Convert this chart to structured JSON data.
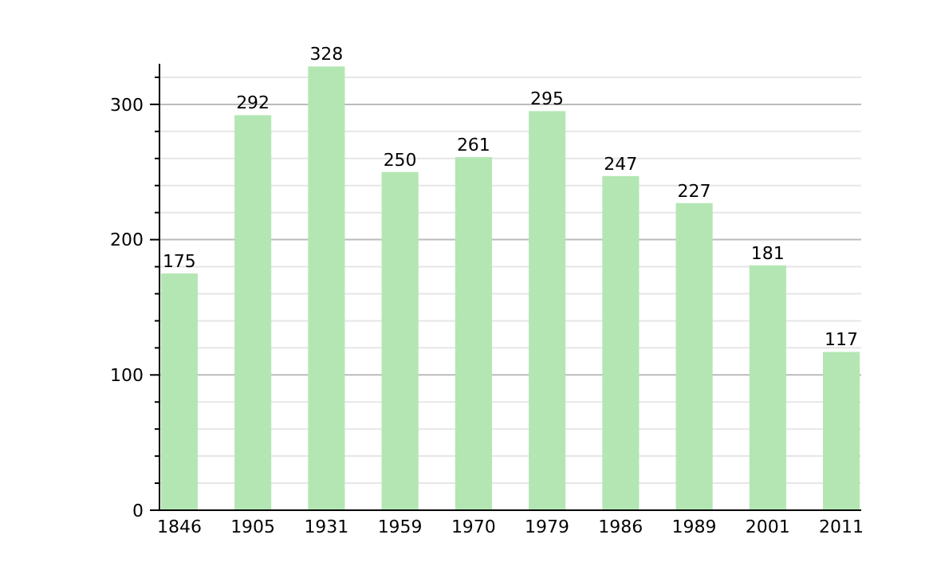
{
  "chart_data": {
    "type": "bar",
    "categories": [
      "1846",
      "1905",
      "1931",
      "1959",
      "1970",
      "1979",
      "1986",
      "1989",
      "2001",
      "2011"
    ],
    "values": [
      175,
      292,
      328,
      250,
      261,
      295,
      247,
      227,
      181,
      117
    ],
    "color": "#b3e6b3",
    "ylim": [
      0,
      330
    ],
    "yticks": [
      0,
      {
        "value": 20,
        "label": null
      },
      {
        "value": 40,
        "label": null
      },
      {
        "value": 60,
        "label": null
      },
      {
        "value": 80,
        "label": null
      },
      100,
      {
        "value": 120,
        "label": null
      },
      {
        "value": 140,
        "label": null
      },
      {
        "value": 160,
        "label": null
      },
      {
        "value": 180,
        "label": null
      },
      200,
      {
        "value": 220,
        "label": null
      },
      {
        "value": 240,
        "label": null
      },
      {
        "value": 260,
        "label": null
      },
      {
        "value": 280,
        "label": null
      },
      300,
      {
        "value": 320,
        "label": null
      }
    ],
    "grid": true,
    "data_labels": true
  }
}
